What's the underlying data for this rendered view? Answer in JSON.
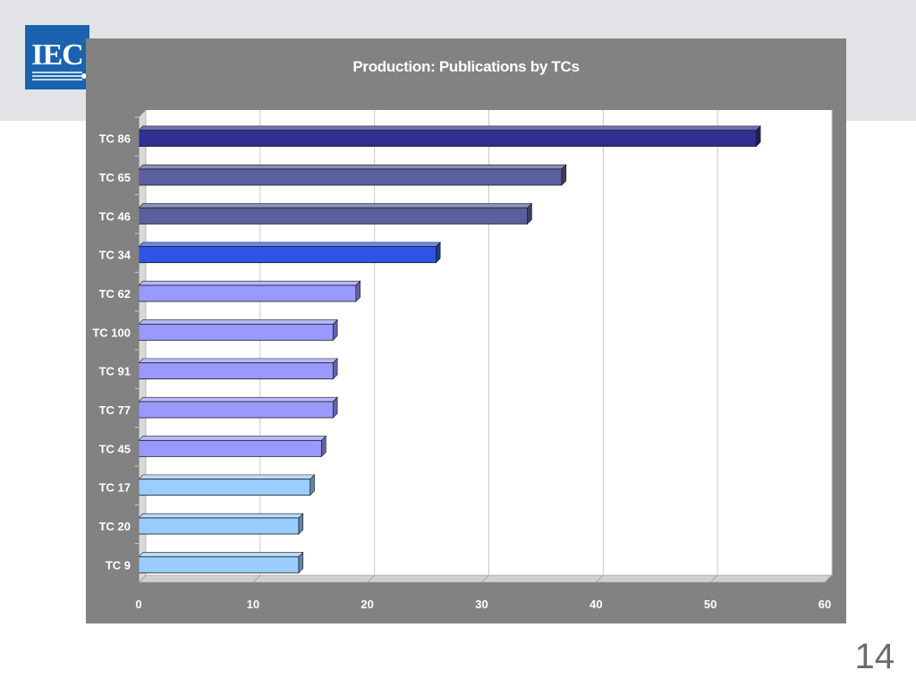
{
  "logo": {
    "text": "IEC"
  },
  "slide": {
    "number": "14"
  },
  "colors": {
    "frame": "#828282",
    "plot": "#ffffff",
    "dark_navy": "#2e3192",
    "slate": "#5b5f9e",
    "royal_blue": "#2f54e3",
    "lavender": "#9999ff",
    "light_blue": "#99ccff"
  },
  "chart_data": {
    "type": "bar",
    "orientation": "horizontal",
    "title": "Production: Publications by TCs",
    "xlabel": "",
    "ylabel": "",
    "xlim": [
      0,
      60
    ],
    "x_ticks": [
      "0",
      "10",
      "20",
      "30",
      "40",
      "50",
      "60"
    ],
    "grid": "vertical",
    "style": "3d",
    "categories": [
      "TC 86",
      "TC 65",
      "TC 46",
      "TC 34",
      "TC 62",
      "TC 100",
      "TC 91",
      "TC 77",
      "TC 45",
      "TC 17",
      "TC 20",
      "TC 9"
    ],
    "values": [
      54,
      37,
      34,
      26,
      19,
      17,
      17,
      17,
      16,
      15,
      14,
      14
    ],
    "value_labels": [
      "54",
      "37",
      "34",
      "26",
      "19",
      "17",
      "17",
      "17",
      "16",
      "15",
      "14",
      "14"
    ],
    "bar_colors": [
      "#2e3192",
      "#5b5f9e",
      "#5b5f9e",
      "#2f54e3",
      "#9999ff",
      "#9999ff",
      "#9999ff",
      "#9999ff",
      "#9999ff",
      "#99ccff",
      "#99ccff",
      "#99ccff"
    ]
  }
}
